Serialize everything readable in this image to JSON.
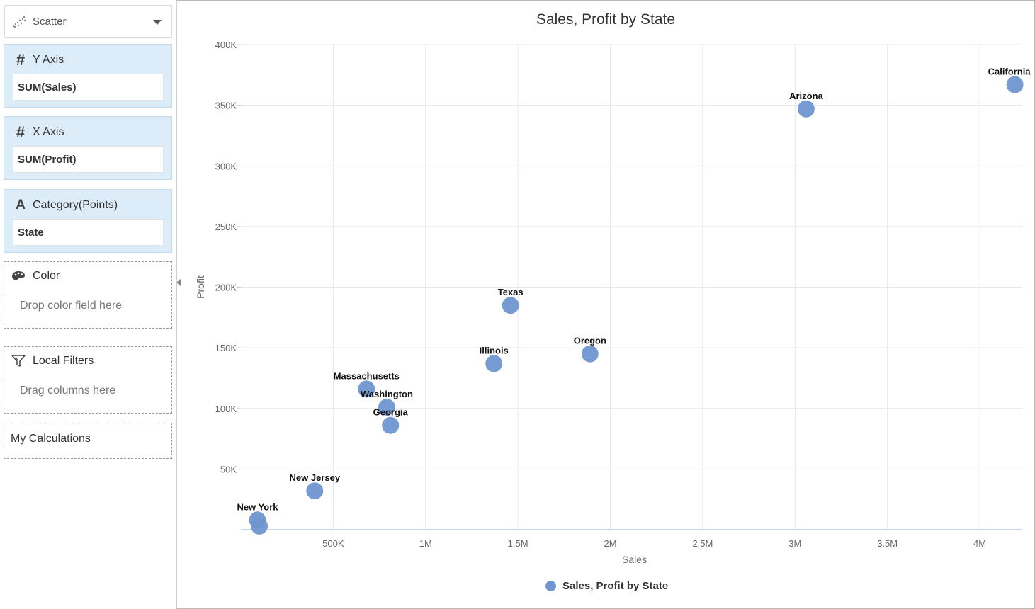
{
  "panel": {
    "chart_type": "Scatter",
    "y_axis": {
      "title": "Y Axis",
      "field": "SUM(Sales)"
    },
    "x_axis": {
      "title": "X Axis",
      "field": "SUM(Profit)"
    },
    "category": {
      "title": "Category(Points)",
      "field": "State"
    },
    "color": {
      "title": "Color",
      "hint": "Drop color field here"
    },
    "local_filters": {
      "title": "Local Filters",
      "hint": "Drag columns here"
    },
    "my_calculations": {
      "title": "My Calculations"
    }
  },
  "icons": {
    "chart_type": "scatter-icon",
    "measure": "hash-icon",
    "dimension": "text-a-icon",
    "color": "palette-icon",
    "filter": "filter-icon"
  },
  "colors": {
    "point": "#6f96d1",
    "shelf_bg": "#dcecf8",
    "grid": "#e3e8ee"
  },
  "chart_data": {
    "type": "scatter",
    "title": "Sales, Profit by State",
    "xlabel": "Sales",
    "ylabel": "Profit",
    "xlim": [
      0,
      4230000
    ],
    "ylim": [
      0,
      400000
    ],
    "x_ticks": [
      {
        "value": 500000,
        "label": "500K"
      },
      {
        "value": 1000000,
        "label": "1M"
      },
      {
        "value": 1500000,
        "label": "1.5M"
      },
      {
        "value": 2000000,
        "label": "2M"
      },
      {
        "value": 2500000,
        "label": "2.5M"
      },
      {
        "value": 3000000,
        "label": "3M"
      },
      {
        "value": 3500000,
        "label": "3.5M"
      },
      {
        "value": 4000000,
        "label": "4M"
      }
    ],
    "y_ticks": [
      {
        "value": 50000,
        "label": "50K"
      },
      {
        "value": 100000,
        "label": "100K"
      },
      {
        "value": 150000,
        "label": "150K"
      },
      {
        "value": 200000,
        "label": "200K"
      },
      {
        "value": 250000,
        "label": "250K"
      },
      {
        "value": 300000,
        "label": "300K"
      },
      {
        "value": 350000,
        "label": "350K"
      },
      {
        "value": 400000,
        "label": "400K"
      }
    ],
    "grid": true,
    "legend": "bottom-center",
    "series": [
      {
        "name": "Sales, Profit by State",
        "points": [
          {
            "label": "California",
            "x": 4190000,
            "y": 367000
          },
          {
            "label": "Arizona",
            "x": 3060000,
            "y": 347000
          },
          {
            "label": "Texas",
            "x": 1460000,
            "y": 185000
          },
          {
            "label": "Oregon",
            "x": 1890000,
            "y": 145000
          },
          {
            "label": "Illinois",
            "x": 1370000,
            "y": 137000
          },
          {
            "label": "Massachusetts",
            "x": 680000,
            "y": 116000
          },
          {
            "label": "Washington",
            "x": 790000,
            "y": 101000
          },
          {
            "label": "Georgia",
            "x": 810000,
            "y": 86000
          },
          {
            "label": "New Jersey",
            "x": 400000,
            "y": 32000
          },
          {
            "label": "New York",
            "x": 90000,
            "y": 8000
          },
          {
            "label": "",
            "x": 100000,
            "y": 3000
          }
        ]
      }
    ]
  }
}
